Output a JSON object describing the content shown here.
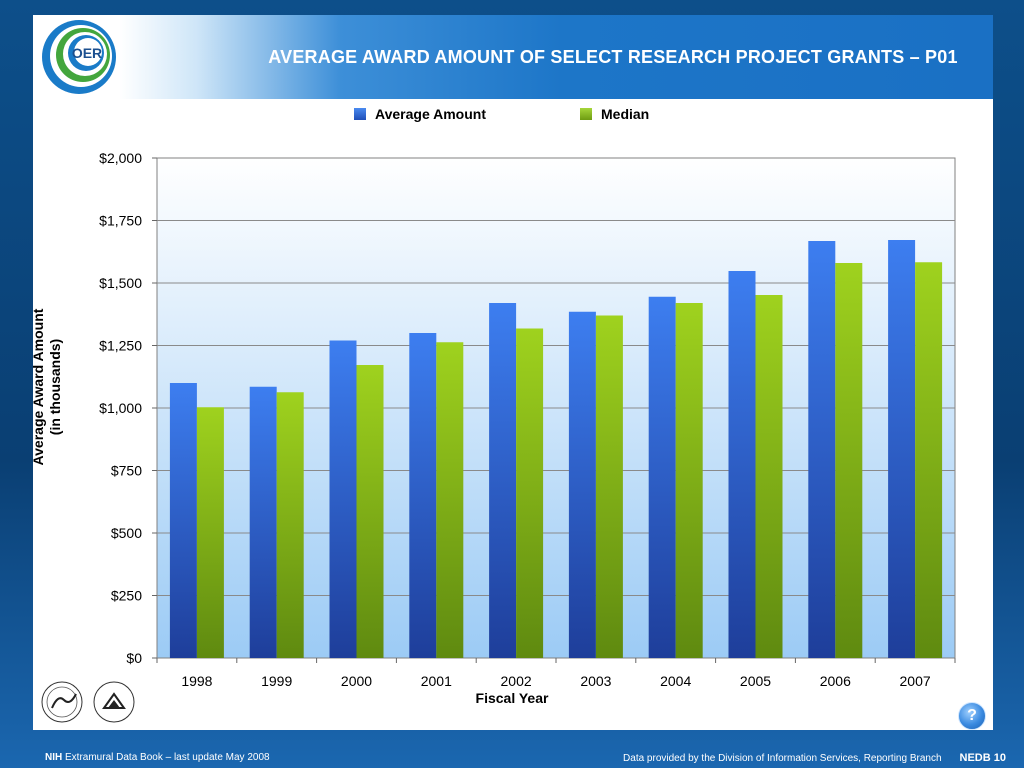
{
  "header": {
    "title": "AVERAGE AWARD AMOUNT OF SELECT RESEARCH PROJECT GRANTS  –  P01",
    "logo_text": "OER"
  },
  "legend": {
    "items": [
      {
        "label": "Average Amount",
        "color": "#2f6fd8"
      },
      {
        "label": "Median",
        "color": "#8cc21c"
      }
    ]
  },
  "axes": {
    "ylabel_line1": "Average Award Amount",
    "ylabel_line2": "(in thousands)",
    "xlabel": "Fiscal Year"
  },
  "chart_data": {
    "type": "bar",
    "categories": [
      "1998",
      "1999",
      "2000",
      "2001",
      "2002",
      "2003",
      "2004",
      "2005",
      "2006",
      "2007"
    ],
    "series": [
      {
        "name": "Average Amount",
        "values": [
          1100,
          1085,
          1270,
          1300,
          1420,
          1385,
          1445,
          1548,
          1668,
          1672
        ]
      },
      {
        "name": "Median",
        "values": [
          1003,
          1063,
          1172,
          1263,
          1318,
          1370,
          1420,
          1452,
          1580,
          1583
        ]
      }
    ],
    "ylim": [
      0,
      2000
    ],
    "yticks": [
      0,
      250,
      500,
      750,
      1000,
      1250,
      1500,
      1750,
      2000
    ],
    "ytick_labels": [
      "$0",
      "$250",
      "$500",
      "$750",
      "$1,000",
      "$1,250",
      "$1,500",
      "$1,750",
      "$2,000"
    ],
    "xlabel": "Fiscal Year",
    "ylabel": "Average Award Amount (in thousands)",
    "grid": true,
    "legend_position": "top"
  },
  "footer": {
    "left_bold": "NIH",
    "left_text": " Extramural Data Book – last update May 2008",
    "right_text": "Data provided by the Division of Information Services, Reporting Branch",
    "code": "NEDB 10"
  },
  "help": {
    "label": "?"
  },
  "colors": {
    "accent": "#1a70c4",
    "avg_bar": "#2f6fd8",
    "median_bar": "#8cc21c"
  }
}
